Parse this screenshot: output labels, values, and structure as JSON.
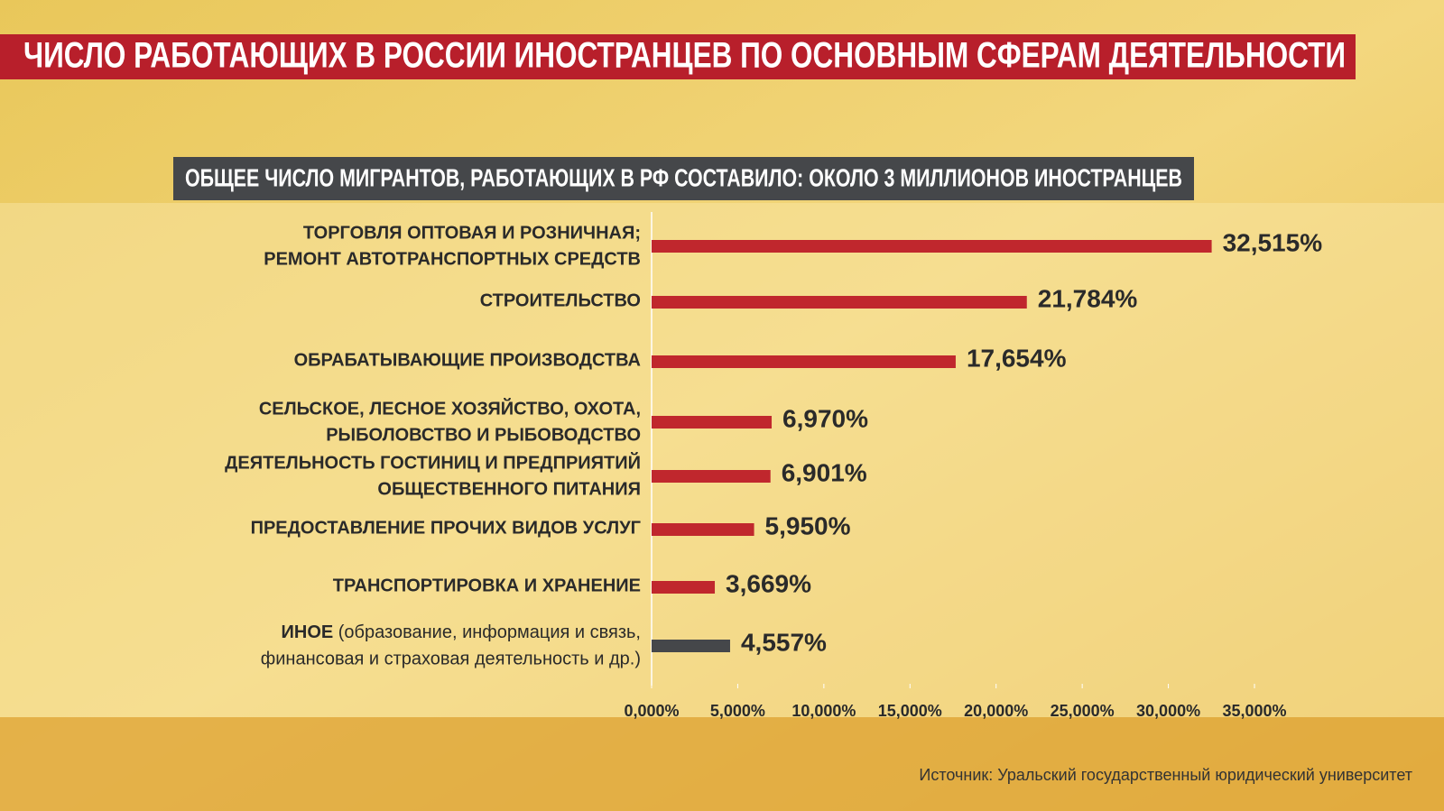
{
  "chart_data": {
    "type": "barh",
    "title": "ЧИСЛО РАБОТАЮЩИХ В РОССИИ ИНОСТРАНЦЕВ ПО ОСНОВНЫМ СФЕРАМ ДЕЯТЕЛЬНОСТИ",
    "subtitle": "ОБЩЕЕ ЧИСЛО МИГРАНТОВ, РАБОТАЮЩИХ В РФ СОСТАВИЛО:  ОКОЛО 3 МИЛЛИОНОВ ИНОСТРАНЦЕВ",
    "categories": [
      [
        "ТОРГОВЛЯ ОПТОВАЯ И РОЗНИЧНАЯ;",
        "РЕМОНТ АВТОТРАНСПОРТНЫХ СРЕДСТВ"
      ],
      [
        "СТРОИТЕЛЬСТВО"
      ],
      [
        "ОБРАБАТЫВАЮЩИЕ ПРОИЗВОДСТВА"
      ],
      [
        "СЕЛЬСКОЕ, ЛЕСНОЕ ХОЗЯЙСТВО, ОХОТА,",
        "РЫБОЛОВСТВО И РЫБОВОДСТВО"
      ],
      [
        "ДЕЯТЕЛЬНОСТЬ ГОСТИНИЦ И ПРЕДПРИЯТИЙ",
        "ОБЩЕСТВЕННОГО ПИТАНИЯ"
      ],
      [
        "ПРЕДОСТАВЛЕНИЕ ПРОЧИХ ВИДОВ УСЛУГ"
      ],
      [
        "ТРАНСПОРТИРОВКА И ХРАНЕНИЕ"
      ],
      [
        [
          "ИНОЕ",
          " (образование, информация и связь,"
        ],
        "финансовая и страховая деятельность и др.)"
      ]
    ],
    "values": [
      32.515,
      21.784,
      17.654,
      6.97,
      6.901,
      5.95,
      3.669,
      4.557
    ],
    "value_labels": [
      "32,515%",
      "21,784%",
      "17,654%",
      "6,970%",
      "6,901%",
      "5,950%",
      "3,669%",
      "4,557%"
    ],
    "colors": [
      "#c0272d",
      "#c0272d",
      "#c0272d",
      "#c0272d",
      "#c0272d",
      "#c0272d",
      "#c0272d",
      "#45474a"
    ],
    "xlim": [
      0,
      35
    ],
    "xticks": [
      {
        "value": 0,
        "label": "0,000%"
      },
      {
        "value": 5,
        "label": "5,000%"
      },
      {
        "value": 10,
        "label": "10,000%"
      },
      {
        "value": 15,
        "label": "15,000%"
      },
      {
        "value": 20,
        "label": "20,000%"
      },
      {
        "value": 25,
        "label": "25,000%"
      },
      {
        "value": 30,
        "label": "30,000%"
      },
      {
        "value": 35,
        "label": "35,000%"
      }
    ],
    "source": "Источник: Уральский государственный юридический университет"
  }
}
